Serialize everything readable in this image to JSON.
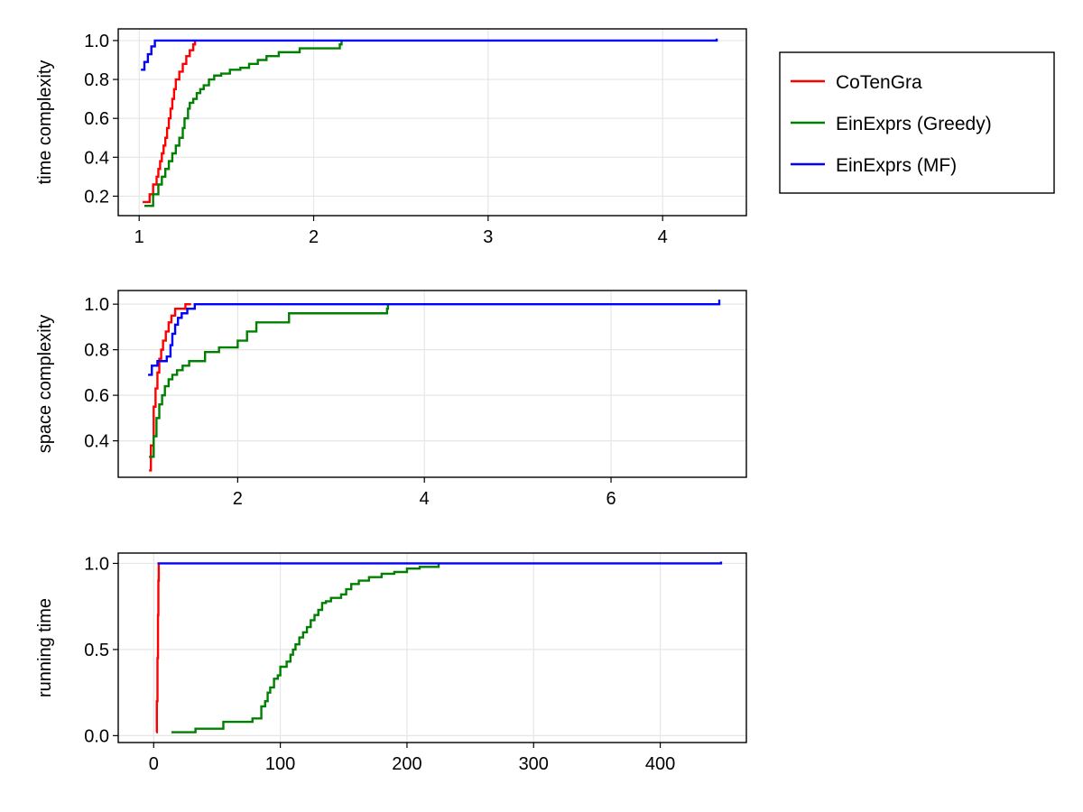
{
  "chart_data": [
    {
      "type": "line",
      "step": true,
      "ylabel": "time complexity",
      "xlabel": "",
      "xlim": [
        0.88,
        4.48
      ],
      "ylim": [
        0.1,
        1.06
      ],
      "xticks": [
        1,
        2,
        3,
        4
      ],
      "yticks": [
        0.2,
        0.4,
        0.6,
        0.8,
        1.0
      ],
      "xtick_labels": [
        "1",
        "2",
        "3",
        "4"
      ],
      "ytick_labels": [
        "0.2",
        "0.4",
        "0.6",
        "0.8",
        "1.0"
      ],
      "grid": true,
      "series": [
        {
          "name": "CoTenGra",
          "color": "#ff0000",
          "x": [
            1.02,
            1.06,
            1.08,
            1.1,
            1.11,
            1.12,
            1.13,
            1.14,
            1.15,
            1.16,
            1.17,
            1.18,
            1.19,
            1.2,
            1.21,
            1.23,
            1.25,
            1.27,
            1.29,
            1.31,
            1.32
          ],
          "y": [
            0.17,
            0.21,
            0.26,
            0.3,
            0.34,
            0.38,
            0.42,
            0.46,
            0.5,
            0.55,
            0.6,
            0.65,
            0.7,
            0.75,
            0.8,
            0.84,
            0.88,
            0.92,
            0.95,
            0.98,
            1.0
          ]
        },
        {
          "name": "EinExprs (Greedy)",
          "color": "#008000",
          "x": [
            1.03,
            1.08,
            1.11,
            1.13,
            1.15,
            1.17,
            1.19,
            1.21,
            1.23,
            1.25,
            1.26,
            1.28,
            1.29,
            1.31,
            1.33,
            1.35,
            1.37,
            1.4,
            1.43,
            1.47,
            1.52,
            1.58,
            1.63,
            1.68,
            1.73,
            1.8,
            1.92,
            2.15,
            2.16
          ],
          "y": [
            0.15,
            0.21,
            0.26,
            0.3,
            0.34,
            0.38,
            0.42,
            0.46,
            0.5,
            0.55,
            0.6,
            0.65,
            0.68,
            0.7,
            0.73,
            0.75,
            0.77,
            0.8,
            0.82,
            0.83,
            0.85,
            0.86,
            0.88,
            0.9,
            0.92,
            0.94,
            0.96,
            0.98,
            1.0
          ]
        },
        {
          "name": "EinExprs (MF)",
          "color": "#0000ff",
          "x": [
            1.01,
            1.03,
            1.05,
            1.07,
            1.09,
            4.31
          ],
          "y": [
            0.85,
            0.89,
            0.93,
            0.97,
            1.0,
            1.01
          ]
        }
      ]
    },
    {
      "type": "line",
      "step": true,
      "ylabel": "space complexity",
      "xlabel": "",
      "xlim": [
        0.72,
        7.45
      ],
      "ylim": [
        0.24,
        1.06
      ],
      "xticks": [
        2,
        4,
        6
      ],
      "yticks": [
        0.4,
        0.6,
        0.8,
        1.0
      ],
      "xtick_labels": [
        "2",
        "4",
        "6"
      ],
      "ytick_labels": [
        "0.4",
        "0.6",
        "0.8",
        "1.0"
      ],
      "grid": true,
      "series": [
        {
          "name": "CoTenGra",
          "color": "#ff0000",
          "x": [
            1.05,
            1.07,
            1.1,
            1.12,
            1.14,
            1.16,
            1.18,
            1.2,
            1.23,
            1.26,
            1.29,
            1.33,
            1.38,
            1.44,
            1.5
          ],
          "y": [
            0.27,
            0.38,
            0.55,
            0.63,
            0.7,
            0.76,
            0.8,
            0.84,
            0.88,
            0.92,
            0.95,
            0.98,
            0.98,
            1.0,
            1.0
          ]
        },
        {
          "name": "EinExprs (Greedy)",
          "color": "#008000",
          "x": [
            1.05,
            1.1,
            1.13,
            1.16,
            1.19,
            1.22,
            1.26,
            1.3,
            1.35,
            1.41,
            1.48,
            1.55,
            1.65,
            1.8,
            2.0,
            2.1,
            2.2,
            2.55,
            3.6,
            3.61
          ],
          "y": [
            0.33,
            0.42,
            0.5,
            0.56,
            0.6,
            0.64,
            0.67,
            0.69,
            0.71,
            0.73,
            0.75,
            0.75,
            0.79,
            0.81,
            0.84,
            0.88,
            0.92,
            0.96,
            0.98,
            1.0
          ]
        },
        {
          "name": "EinExprs (MF)",
          "color": "#0000ff",
          "x": [
            1.04,
            1.08,
            1.14,
            1.24,
            1.28,
            1.3,
            1.33,
            1.36,
            1.4,
            1.46,
            1.54,
            7.16
          ],
          "y": [
            0.69,
            0.73,
            0.75,
            0.77,
            0.82,
            0.87,
            0.91,
            0.94,
            0.96,
            0.98,
            1.0,
            1.02
          ]
        }
      ]
    },
    {
      "type": "line",
      "step": true,
      "ylabel": "running time",
      "xlabel": "",
      "xlim": [
        -28,
        468
      ],
      "ylim": [
        -0.04,
        1.06
      ],
      "xticks": [
        0,
        100,
        200,
        300,
        400
      ],
      "yticks": [
        0.0,
        0.5,
        1.0
      ],
      "xtick_labels": [
        "0",
        "100",
        "200",
        "300",
        "400"
      ],
      "ytick_labels": [
        "0.0",
        "0.5",
        "1.0"
      ],
      "grid": true,
      "series": [
        {
          "name": "CoTenGra",
          "color": "#ff0000",
          "x": [
            2.0,
            2.5,
            3.0,
            3.4,
            3.7,
            4.0
          ],
          "y": [
            0.02,
            0.2,
            0.45,
            0.7,
            0.9,
            1.0
          ]
        },
        {
          "name": "EinExprs (Greedy)",
          "color": "#008000",
          "x": [
            14,
            33,
            55,
            78,
            85,
            88,
            90,
            92,
            95,
            98,
            100,
            105,
            108,
            110,
            112,
            115,
            118,
            121,
            124,
            127,
            130,
            133,
            136,
            140,
            148,
            152,
            156,
            162,
            170,
            180,
            190,
            200,
            210,
            225
          ],
          "y": [
            0.02,
            0.04,
            0.08,
            0.1,
            0.17,
            0.2,
            0.25,
            0.28,
            0.33,
            0.35,
            0.4,
            0.43,
            0.47,
            0.5,
            0.53,
            0.57,
            0.6,
            0.63,
            0.67,
            0.7,
            0.73,
            0.77,
            0.78,
            0.8,
            0.82,
            0.85,
            0.88,
            0.9,
            0.92,
            0.94,
            0.95,
            0.97,
            0.98,
            1.0
          ]
        },
        {
          "name": "EinExprs (MF)",
          "color": "#0000ff",
          "x": [
            3.0,
            448
          ],
          "y": [
            1.0,
            1.01
          ]
        }
      ]
    }
  ],
  "legend": {
    "placement": "right",
    "entries": [
      {
        "name": "CoTenGra",
        "color": "#ff0000"
      },
      {
        "name": "EinExprs (Greedy)",
        "color": "#008000"
      },
      {
        "name": "EinExprs (MF)",
        "color": "#0000ff"
      }
    ]
  }
}
